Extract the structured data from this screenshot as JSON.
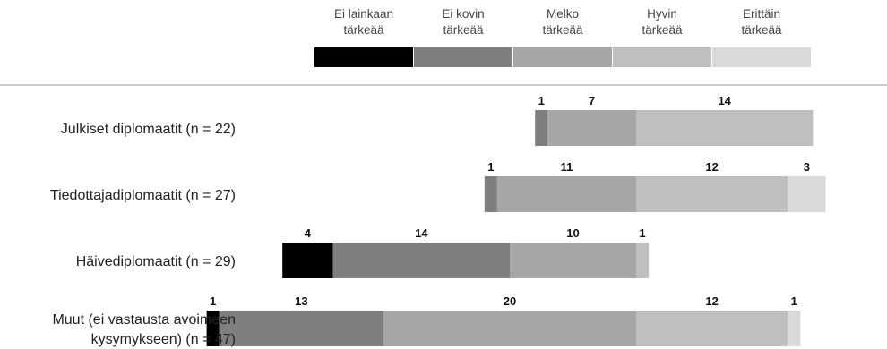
{
  "chart_data": {
    "type": "bar",
    "orientation": "horizontal",
    "stacked": true,
    "diverging": true,
    "legend_position": "top",
    "grid": false,
    "categories": [
      [
        "Julkiset diplomaatit (n = 22)"
      ],
      [
        "Tiedottajadiplomaatit (n = 27)"
      ],
      [
        "Häivediplomaatit (n = 29)"
      ],
      [
        "Muut (ei vastausta avoimeen",
        "kysymykseen)  (n = 47)"
      ]
    ],
    "series": [
      {
        "name": [
          "Ei lainkaan",
          "tärkeää"
        ],
        "color": "#000000",
        "values": [
          0,
          0,
          4,
          1
        ]
      },
      {
        "name": [
          "Ei kovin",
          "tärkeää"
        ],
        "color": "#7f7f7f",
        "values": [
          1,
          1,
          14,
          13
        ]
      },
      {
        "name": [
          "Melko",
          "tärkeää"
        ],
        "color": "#a6a6a6",
        "values": [
          7,
          11,
          10,
          20
        ]
      },
      {
        "name": [
          "Hyvin",
          "tärkeää"
        ],
        "color": "#bfbfbf",
        "values": [
          14,
          12,
          1,
          12
        ]
      },
      {
        "name": [
          "Erittäin",
          "tärkeää"
        ],
        "color": "#d9d9d9",
        "values": [
          0,
          3,
          0,
          1
        ]
      }
    ]
  }
}
